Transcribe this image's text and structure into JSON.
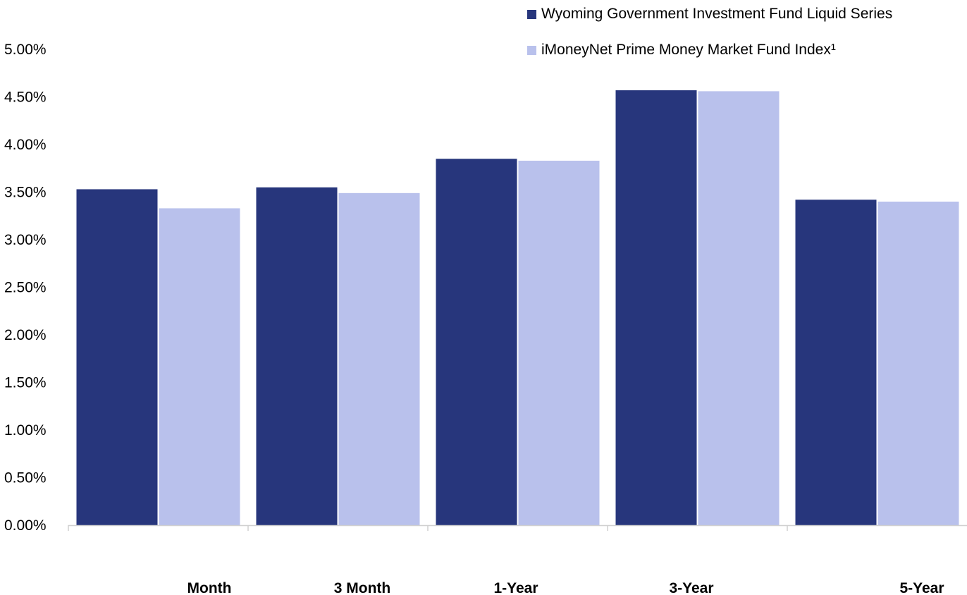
{
  "chart_data": {
    "type": "bar",
    "categories": [
      "Month",
      "3 Month",
      "1-Year",
      "3-Year",
      "5-Year"
    ],
    "series": [
      {
        "name": "Wyoming Government Investment Fund Liquid Series",
        "color": "#27367c",
        "values": [
          3.53,
          3.55,
          3.85,
          4.57,
          3.42
        ]
      },
      {
        "name": "iMoneyNet Prime Money Market Fund Index¹",
        "color": "#b9c1ec",
        "values": [
          3.33,
          3.49,
          3.83,
          4.56,
          3.4
        ]
      }
    ],
    "ylim": [
      0,
      5
    ],
    "yticks": [
      "0.00%",
      "0.50%",
      "1.00%",
      "1.50%",
      "2.00%",
      "2.50%",
      "3.00%",
      "3.50%",
      "4.00%",
      "4.50%",
      "5.00%"
    ],
    "grid": false,
    "legend_position": "top-right"
  }
}
